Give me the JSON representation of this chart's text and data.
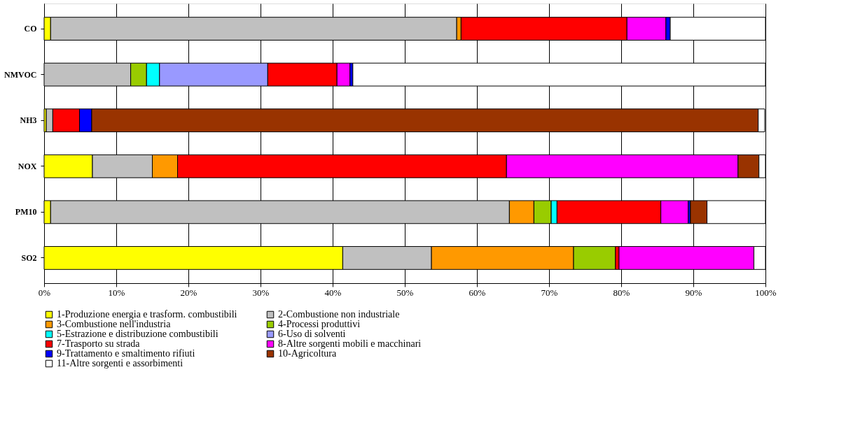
{
  "chart_data": {
    "type": "bar",
    "orientation": "horizontal",
    "stacked": true,
    "categories": [
      "CO",
      "NMVOC",
      "NH3",
      "NOX",
      "PM10",
      "SO2"
    ],
    "series": [
      {
        "name": "1-Produzione energia e trasform. combustibili",
        "color": "#ffff00",
        "values": [
          0.9,
          null,
          0.3,
          6.7,
          0.9,
          41.4
        ]
      },
      {
        "name": "2-Combustione non industriale",
        "color": "#c0c0c0",
        "values": [
          56.3,
          12.0,
          0.9,
          8.3,
          63.6,
          12.3
        ]
      },
      {
        "name": "3-Combustione nell'industria",
        "color": "#ff9900",
        "values": [
          0.6,
          null,
          null,
          3.5,
          3.4,
          19.7
        ]
      },
      {
        "name": "4-Processi produttivi",
        "color": "#99cc00",
        "values": [
          null,
          2.2,
          null,
          null,
          2.4,
          5.8
        ]
      },
      {
        "name": "5-Estrazione e distribuzione combustibili",
        "color": "#00ffff",
        "values": [
          null,
          1.8,
          null,
          null,
          0.8,
          null
        ]
      },
      {
        "name": "6-Uso di solventi",
        "color": "#9999ff",
        "values": [
          null,
          15.0,
          null,
          null,
          null,
          null
        ]
      },
      {
        "name": "7-Trasporto su strada",
        "color": "#ff0000",
        "values": [
          23.0,
          9.6,
          3.7,
          45.6,
          14.4,
          0.5
        ]
      },
      {
        "name": "8-Altre sorgenti mobili e macchinari",
        "color": "#ff00ff",
        "values": [
          5.4,
          1.8,
          null,
          32.1,
          3.8,
          18.7
        ]
      },
      {
        "name": "9-Trattamento e smaltimento rifiuti",
        "color": "#0000ff",
        "values": [
          0.6,
          0.4,
          1.7,
          null,
          0.3,
          null
        ]
      },
      {
        "name": "10-Agricoltura",
        "color": "#993300",
        "values": [
          null,
          null,
          92.4,
          2.9,
          2.3,
          null
        ]
      },
      {
        "name": "11-Altre sorgenti e assorbimenti",
        "color": "#ffffff",
        "values": [
          13.2,
          57.2,
          0.9,
          0.9,
          8.1,
          1.6
        ]
      }
    ],
    "xlim": [
      0,
      100
    ],
    "xticks": [
      {
        "value": 0,
        "label": "0%"
      },
      {
        "value": 10,
        "label": "10%"
      },
      {
        "value": 20,
        "label": "20%"
      },
      {
        "value": 30,
        "label": "30%"
      },
      {
        "value": 40,
        "label": "40%"
      },
      {
        "value": 50,
        "label": "50%"
      },
      {
        "value": 60,
        "label": "60%"
      },
      {
        "value": 70,
        "label": "70%"
      },
      {
        "value": 80,
        "label": "80%"
      },
      {
        "value": 90,
        "label": "90%"
      },
      {
        "value": 100,
        "label": "100%"
      }
    ],
    "grid": "x",
    "legend": "bottom"
  }
}
